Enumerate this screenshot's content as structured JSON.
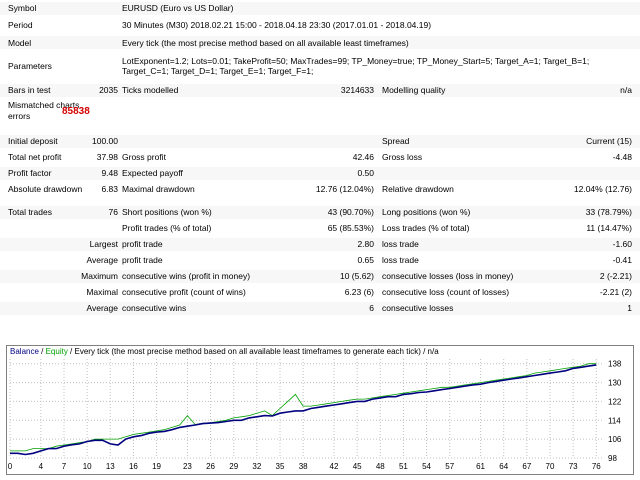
{
  "settings": {
    "symbol_label": "Symbol",
    "symbol_value": "EURUSD (Euro vs US Dollar)",
    "period_label": "Period",
    "period_value": "30 Minutes (M30) 2018.02.21 15:00 - 2018.04.18 23:30 (2017.01.01 - 2018.04.19)",
    "model_label": "Model",
    "model_value": "Every tick (the most precise method based on all available least timeframes)",
    "parameters_label": "Parameters",
    "parameters_line1": "LotExponent=1.2; Lots=0.01; TakeProfit=50; MaxTrades=99; TP_Money=true; TP_Money_Start=5; Target_A=1; Target_B=1;",
    "parameters_line2": "Target_C=1; Target_D=1; Target_E=1; Target_F=1;"
  },
  "stats": {
    "bars_label": "Bars in test",
    "bars_value": "2035",
    "ticks_label": "Ticks modelled",
    "ticks_value": "3214633",
    "quality_label": "Modelling quality",
    "quality_value": "n/a",
    "mismatch_label_1": "Mismatched charts",
    "mismatch_label_2": "errors",
    "mismatch_value": "85838",
    "initial_deposit_label": "Initial deposit",
    "initial_deposit_value": "100.00",
    "spread_label": "Spread",
    "spread_value": "Current (15)",
    "net_profit_label": "Total net profit",
    "net_profit_value": "37.98",
    "gross_profit_label": "Gross profit",
    "gross_profit_value": "42.46",
    "gross_loss_label": "Gross loss",
    "gross_loss_value": "-4.48",
    "profit_factor_label": "Profit factor",
    "profit_factor_value": "9.48",
    "expected_payoff_label": "Expected payoff",
    "expected_payoff_value": "0.50",
    "abs_drawdown_label": "Absolute drawdown",
    "abs_drawdown_value": "6.83",
    "max_drawdown_label": "Maximal drawdown",
    "max_drawdown_value": "12.76 (12.04%)",
    "rel_drawdown_label": "Relative drawdown",
    "rel_drawdown_value": "12.04% (12.76)",
    "total_trades_label": "Total trades",
    "total_trades_value": "76",
    "short_label": "Short positions (won %)",
    "short_value": "43 (90.70%)",
    "long_label": "Long positions (won %)",
    "long_value": "33 (78.79%)",
    "profit_trades_label": "Profit trades (% of total)",
    "profit_trades_value": "65 (85.53%)",
    "loss_trades_label": "Loss trades (% of total)",
    "loss_trades_value": "11 (14.47%)",
    "largest_label": "Largest",
    "average_label": "Average",
    "maximum_label": "Maximum",
    "maximal_label": "Maximal",
    "average2_label": "Average",
    "largest_profit_label": "profit trade",
    "largest_profit_value": "2.80",
    "largest_loss_label": "loss trade",
    "largest_loss_value": "-1.60",
    "avg_profit_label": "profit trade",
    "avg_profit_value": "0.65",
    "avg_loss_label": "loss trade",
    "avg_loss_value": "-0.41",
    "max_cons_wins_label": "consecutive wins (profit in money)",
    "max_cons_wins_value": "10 (5.62)",
    "max_cons_losses_label": "consecutive losses (loss in money)",
    "max_cons_losses_value": "2 (-2.21)",
    "maximal_cons_profit_label": "consecutive profit (count of wins)",
    "maximal_cons_profit_value": "6.23 (6)",
    "maximal_cons_loss_label": "consecutive loss (count of losses)",
    "maximal_cons_loss_value": "-2.21 (2)",
    "avg_cons_wins_label": "consecutive wins",
    "avg_cons_wins_value": "6",
    "avg_cons_losses_label": "consecutive losses",
    "avg_cons_losses_value": "1"
  },
  "chart_data": {
    "type": "line",
    "legend": {
      "balance": "Balance",
      "equity": "Equity",
      "rest": " / Every tick (the most precise method based on all available least timeframes to generate each tick) / n/a"
    },
    "x_ticks": [
      0,
      4,
      7,
      10,
      13,
      16,
      19,
      23,
      26,
      29,
      32,
      35,
      38,
      42,
      45,
      48,
      51,
      54,
      57,
      61,
      64,
      67,
      70,
      73,
      76
    ],
    "y_ticks": [
      98,
      106,
      114,
      122,
      130,
      138
    ],
    "xlim": [
      0,
      77
    ],
    "ylim": [
      98,
      140
    ],
    "colors": {
      "balance": "#000080",
      "equity": "#00a000",
      "grid": "#c0c0c0"
    },
    "series": [
      {
        "name": "Balance",
        "x": [
          0,
          1,
          2,
          3,
          4,
          5,
          6,
          7,
          8,
          9,
          10,
          11,
          12,
          13,
          14,
          15,
          16,
          17,
          18,
          19,
          20,
          21,
          22,
          23,
          24,
          25,
          26,
          27,
          28,
          29,
          30,
          31,
          32,
          33,
          34,
          35,
          36,
          37,
          38,
          39,
          40,
          41,
          42,
          43,
          44,
          45,
          46,
          47,
          48,
          49,
          50,
          51,
          52,
          53,
          54,
          55,
          56,
          57,
          58,
          59,
          60,
          61,
          62,
          63,
          64,
          65,
          66,
          67,
          68,
          69,
          70,
          71,
          72,
          73,
          74,
          75,
          76
        ],
        "values": [
          100,
          100,
          99.5,
          100,
          101,
          102,
          102,
          103,
          103.6,
          104,
          105,
          105.5,
          105.5,
          104,
          103.5,
          106,
          107,
          107.5,
          108.5,
          109,
          109.3,
          110,
          111,
          111.5,
          112,
          112.6,
          112.8,
          113,
          113.5,
          114,
          114,
          115,
          115.5,
          116,
          115.8,
          117,
          117.5,
          118,
          118,
          119,
          119.5,
          120,
          120.5,
          121,
          121.5,
          122,
          122,
          123,
          123.5,
          124,
          124,
          125,
          125.3,
          125.8,
          126,
          126.5,
          127,
          127.5,
          128,
          128.5,
          129,
          129.3,
          130,
          130.5,
          131,
          131.5,
          132,
          132.5,
          133,
          133.5,
          134,
          134.5,
          135,
          136,
          136.5,
          137,
          137.5
        ]
      },
      {
        "name": "Equity",
        "x": [
          0,
          1,
          2,
          3,
          4,
          5,
          6,
          7,
          8,
          9,
          10,
          11,
          12,
          13,
          14,
          15,
          16,
          17,
          18,
          19,
          20,
          21,
          22,
          23,
          24,
          25,
          26,
          27,
          28,
          29,
          30,
          31,
          32,
          33,
          34,
          35,
          36,
          37,
          38,
          39,
          40,
          41,
          42,
          43,
          44,
          45,
          46,
          47,
          48,
          49,
          50,
          51,
          52,
          53,
          54,
          55,
          56,
          57,
          58,
          59,
          60,
          61,
          62,
          63,
          64,
          65,
          66,
          67,
          68,
          69,
          70,
          71,
          72,
          73,
          74,
          75,
          76
        ],
        "values": [
          101,
          101,
          101,
          102,
          102,
          102,
          103,
          103.5,
          104,
          104.5,
          105,
          106,
          106,
          106,
          106,
          107,
          108,
          108.5,
          109,
          109.5,
          110,
          111,
          112,
          116,
          112.2,
          112.8,
          113,
          113.5,
          114,
          115,
          115.5,
          116,
          117,
          118,
          116,
          119,
          122,
          125,
          120,
          120,
          120.5,
          121,
          121.5,
          122,
          122.5,
          123,
          123,
          123.5,
          124,
          124.5,
          125,
          125.5,
          126,
          126.5,
          127,
          127.5,
          128,
          128,
          128.5,
          129,
          129.5,
          130,
          130.5,
          131,
          131.5,
          132,
          132.5,
          133,
          134,
          134.5,
          135,
          135.5,
          136,
          136.5,
          137,
          138,
          138
        ]
      }
    ]
  }
}
